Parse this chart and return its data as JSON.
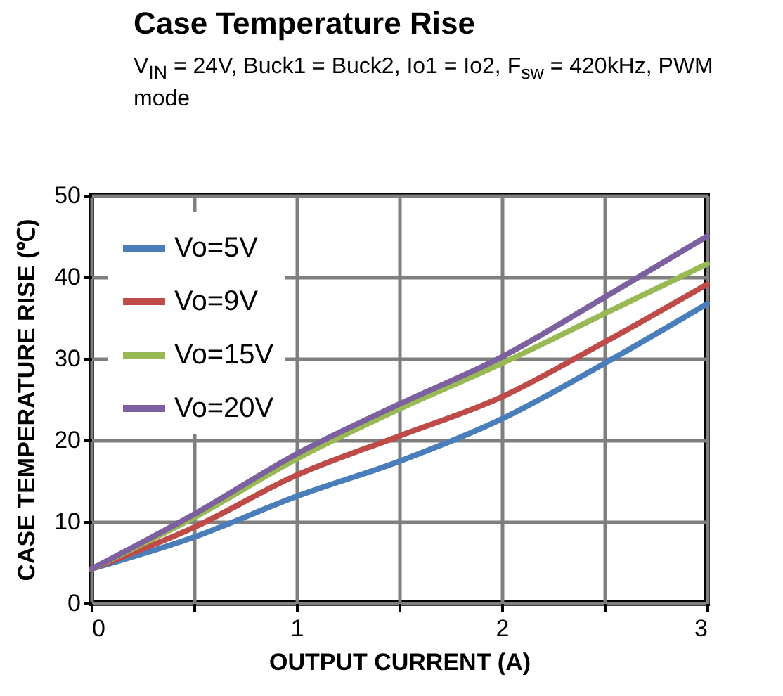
{
  "chart_data": {
    "type": "line",
    "title": "Case Temperature Rise",
    "subtitle": "V$_{IN}$ = 24V, Buck1 = Buck2, Io1 = Io2, F$_{sw}$ = 420kHz, PWM mode",
    "xlabel": "OUTPUT CURRENT (A)",
    "ylabel": "CASE TEMPERATURE RISE (℃)",
    "x": [
      0,
      0.5,
      1,
      1.5,
      2,
      2.5,
      3
    ],
    "series": [
      {
        "name": "Vo=5V",
        "color": "#4a7ebb",
        "values": [
          4.2,
          8.1,
          13.1,
          17.4,
          22.6,
          29.4,
          36.7
        ]
      },
      {
        "name": "Vo=9V",
        "color": "#be4b48",
        "values": [
          4.2,
          9.3,
          15.7,
          20.5,
          25.3,
          32,
          39.1
        ]
      },
      {
        "name": "Vo=15V",
        "color": "#98b954",
        "values": [
          4.2,
          10.5,
          17.7,
          23.8,
          29.4,
          35.5,
          41.6
        ]
      },
      {
        "name": "Vo=20V",
        "color": "#7d60a0",
        "values": [
          4.2,
          10.9,
          18.3,
          24.4,
          30.2,
          37.5,
          45
        ]
      }
    ],
    "xlim": [
      0,
      3
    ],
    "xticks": [
      0,
      {
        "value": 0.5,
        "label": null
      },
      1,
      {
        "value": 1.5,
        "label": null
      },
      2,
      {
        "value": 2.5,
        "label": null
      },
      3
    ],
    "ylim": [
      0,
      50
    ],
    "yticks": [
      0,
      10,
      20,
      30,
      40,
      50
    ],
    "grid": true,
    "legend": "top left",
    "line_style": "solid",
    "marker": "none"
  }
}
